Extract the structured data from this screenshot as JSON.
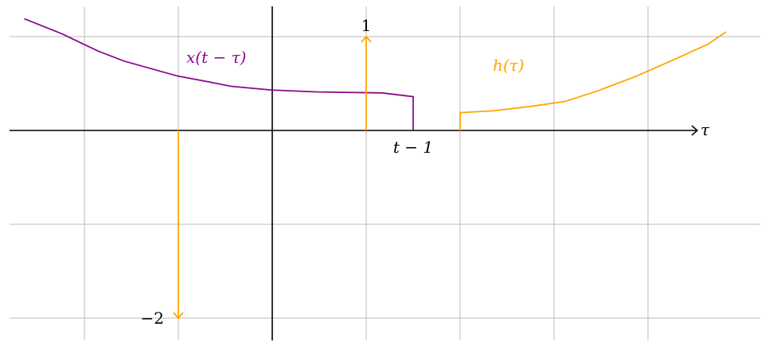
{
  "colors": {
    "x_curve": "#8B0A8B",
    "h_curve": "#FFA500",
    "axis": "#000000",
    "grid": "#BBBBBB"
  },
  "labels": {
    "x_curve": "x(t − τ)",
    "h_curve": "h(τ)",
    "axis": "τ",
    "impulse_up": "1",
    "impulse_down": "−2",
    "edge": "t − 1"
  },
  "diagram": {
    "grid": true,
    "x_range": [
      -2.9,
      5.2
    ],
    "y_range": [
      -2.2,
      1.3
    ],
    "x_curve_points": [
      [
        -2.64,
        1.19
      ],
      [
        -2.24,
        1.03
      ],
      [
        -2.01,
        0.92
      ],
      [
        -1.84,
        0.84
      ],
      [
        -1.58,
        0.74
      ],
      [
        -1.01,
        0.58
      ],
      [
        -0.69,
        0.52
      ],
      [
        -0.44,
        0.47
      ],
      [
        0,
        0.43
      ],
      [
        0.49,
        0.41
      ],
      [
        1.17,
        0.4
      ],
      [
        1.5,
        0.36
      ],
      [
        1.5,
        0
      ]
    ],
    "h_curve_points": [
      [
        2,
        0
      ],
      [
        2,
        0.19
      ],
      [
        2.36,
        0.21
      ],
      [
        2.78,
        0.26
      ],
      [
        3.12,
        0.31
      ],
      [
        3.46,
        0.42
      ],
      [
        3.88,
        0.58
      ],
      [
        4.31,
        0.77
      ],
      [
        4.64,
        0.92
      ],
      [
        4.83,
        1.05
      ]
    ],
    "impulses": [
      {
        "at": 1,
        "height": 1
      },
      {
        "at": -1,
        "height": -2
      }
    ],
    "edge_at": 1.5
  }
}
